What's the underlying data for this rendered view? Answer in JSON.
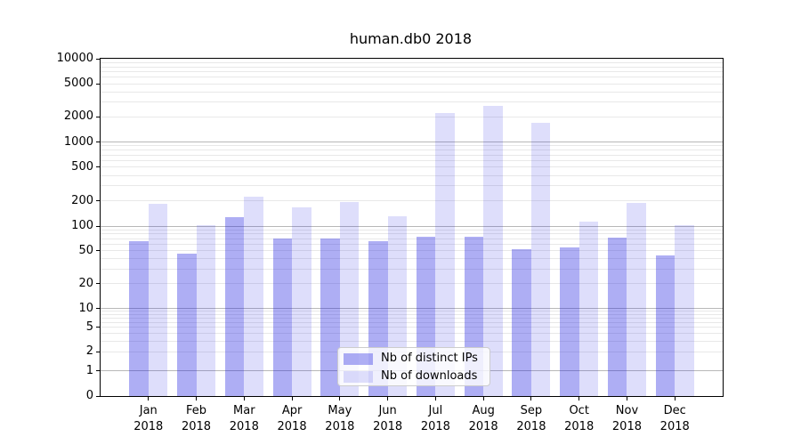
{
  "title": "human.db0 2018",
  "legend": {
    "items": [
      {
        "label": "Nb of distinct IPs",
        "color": "rgba(30,30,225,0.36)"
      },
      {
        "label": "Nb of downloads",
        "color": "rgba(30,30,225,0.145)"
      }
    ]
  },
  "chart_data": {
    "type": "bar",
    "title": "human.db0 2018",
    "categories": [
      "Jan",
      "Feb",
      "Mar",
      "Apr",
      "May",
      "Jun",
      "Jul",
      "Aug",
      "Sep",
      "Oct",
      "Nov",
      "Dec"
    ],
    "x_year_label": "2018",
    "series": [
      {
        "name": "Nb of distinct IPs",
        "color": "rgba(30,30,225,0.36)",
        "values": [
          65,
          46,
          128,
          71,
          71,
          65,
          74,
          75,
          52,
          55,
          72,
          44
        ]
      },
      {
        "name": "Nb of downloads",
        "color": "rgba(30,30,225,0.145)",
        "values": [
          184,
          102,
          226,
          167,
          193,
          131,
          2230,
          2710,
          1700,
          114,
          190,
          102
        ]
      }
    ],
    "yscale": "log-with-zero-baseline",
    "yticks": [
      0,
      1,
      2,
      5,
      10,
      20,
      50,
      100,
      200,
      500,
      1000,
      2000,
      5000,
      10000
    ],
    "ylim": [
      0,
      10000
    ],
    "grid": "both",
    "legend_position": "lower center"
  }
}
